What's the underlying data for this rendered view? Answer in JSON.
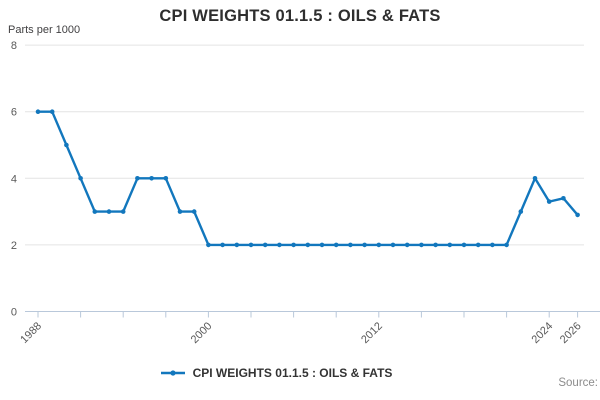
{
  "header": {
    "title": "CPI WEIGHTS 01.1.5 : OILS & FATS"
  },
  "chart_data": {
    "type": "line",
    "title": "CPI WEIGHTS 01.1.5 : OILS & FATS",
    "ylabel": "Parts per 1000",
    "xlabel": "",
    "grid": "horizontal",
    "legend_position": "bottom",
    "ylim": [
      0,
      8
    ],
    "yticks": [
      0,
      2,
      4,
      6,
      8
    ],
    "xticks": [
      1988,
      1991,
      1994,
      1997,
      2000,
      2003,
      2006,
      2009,
      2012,
      2015,
      2018,
      2021,
      2024,
      2026
    ],
    "xtick_labeled_values": [
      1988,
      2000,
      2012,
      2024,
      2026
    ],
    "xtick_labels": [
      "1988",
      "2000",
      "2012",
      "2024",
      "2026"
    ],
    "series": [
      {
        "name": "CPI WEIGHTS 01.1.5 : OILS & FATS",
        "x": [
          1988,
          1989,
          1990,
          1991,
          1992,
          1993,
          1994,
          1995,
          1996,
          1997,
          1998,
          1999,
          2000,
          2001,
          2002,
          2003,
          2004,
          2005,
          2006,
          2007,
          2008,
          2009,
          2010,
          2011,
          2012,
          2013,
          2014,
          2015,
          2016,
          2017,
          2018,
          2019,
          2020,
          2021,
          2022,
          2023,
          2024,
          2025,
          2026
        ],
        "values": [
          6,
          6,
          5,
          4,
          3,
          3,
          3,
          4,
          4,
          4,
          3,
          3,
          2,
          2,
          2,
          2,
          2,
          2,
          2,
          2,
          2,
          2,
          2,
          2,
          2,
          2,
          2,
          2,
          2,
          2,
          2,
          2,
          2,
          2,
          3,
          4,
          3.3,
          3.4,
          2.9
        ]
      }
    ],
    "colors": {
      "line": "#1277bd",
      "grid": "#e4e4e4",
      "axis": "#b9c8da",
      "tick_text": "#595959",
      "title_text": "#2e2e2e",
      "legend_text": "#333333",
      "source_text": "#8c8c8c"
    }
  },
  "legend": {
    "label": "CPI WEIGHTS 01.1.5 : OILS & FATS"
  },
  "footer": {
    "source_label": "Source:"
  }
}
